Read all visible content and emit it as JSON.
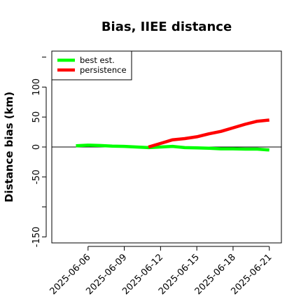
{
  "chart_data": {
    "type": "line",
    "title": "Bias, IIEE distance",
    "ylabel": "Distance bias (km)",
    "xlabel": "",
    "ylim": [
      -160,
      160
    ],
    "yticks": [
      -150,
      -50,
      0,
      50,
      100
    ],
    "xlim": [
      "2025-06-03",
      "2025-06-22"
    ],
    "xticks": [
      "2025-06-06",
      "2025-06-09",
      "2025-06-12",
      "2025-06-15",
      "2025-06-18",
      "2025-06-21"
    ],
    "zero_line": true,
    "grid": false,
    "legend_position": "top-left",
    "series": [
      {
        "name": "best est.",
        "color": "#00ff00",
        "x": [
          "2025-06-05",
          "2025-06-06",
          "2025-06-07",
          "2025-06-08",
          "2025-06-09",
          "2025-06-10",
          "2025-06-11",
          "2025-06-12",
          "2025-06-13",
          "2025-06-14",
          "2025-06-15",
          "2025-06-16",
          "2025-06-17",
          "2025-06-18",
          "2025-06-19",
          "2025-06-20",
          "2025-06-21"
        ],
        "values": [
          2,
          3,
          2.5,
          1.5,
          1,
          0,
          -1,
          0,
          1,
          -1,
          -1.5,
          -2,
          -3,
          -3,
          -3.5,
          -3.5,
          -5
        ]
      },
      {
        "name": "persistence",
        "color": "#ff0000",
        "x": [
          "2025-06-11",
          "2025-06-12",
          "2025-06-13",
          "2025-06-14",
          "2025-06-15",
          "2025-06-16",
          "2025-06-17",
          "2025-06-18",
          "2025-06-19",
          "2025-06-20",
          "2025-06-21"
        ],
        "values": [
          0,
          6,
          12,
          14,
          17,
          22,
          26,
          32,
          38,
          43,
          45
        ]
      }
    ]
  }
}
